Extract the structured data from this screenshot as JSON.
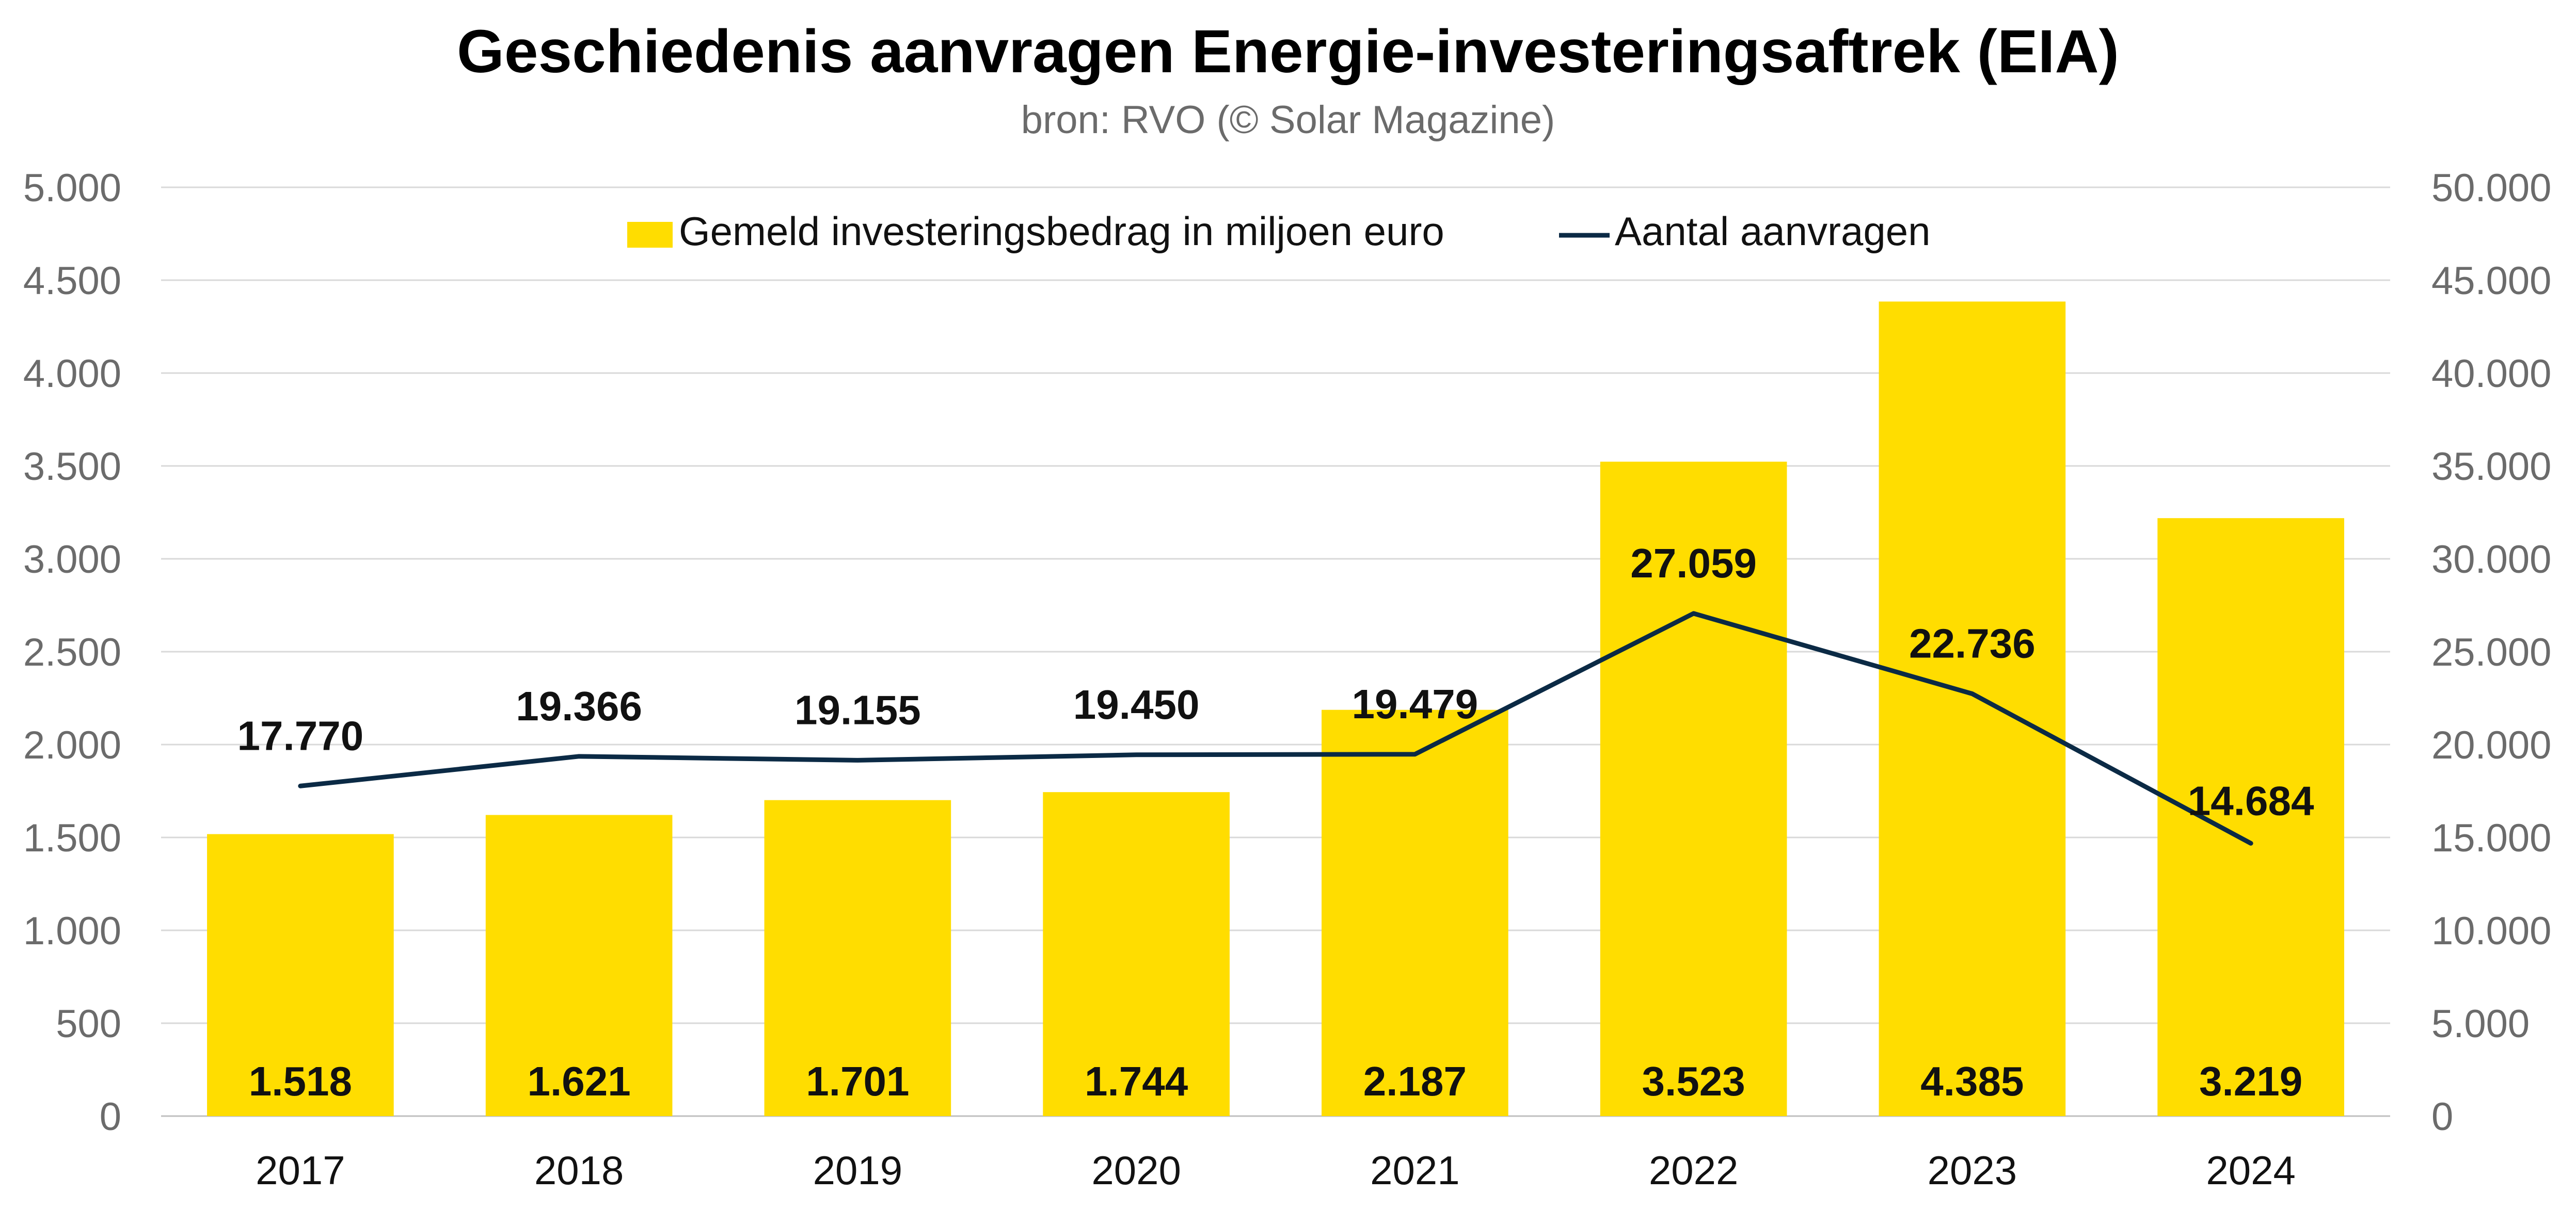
{
  "chart_data": {
    "type": "bar",
    "title": "Geschiedenis aanvragen Energie-investeringsaftrek (EIA)",
    "subtitle": "bron: RVO (© Solar Magazine)",
    "categories": [
      "2017",
      "2018",
      "2019",
      "2020",
      "2021",
      "2022",
      "2023",
      "2024"
    ],
    "series": [
      {
        "name": "Gemeld investeringsbedrag in miljoen euro",
        "type": "bar",
        "axis": "left",
        "color": "#FFDD00",
        "values": [
          1518,
          1621,
          1701,
          1744,
          2187,
          3523,
          4385,
          3219
        ],
        "labels": [
          "1.518",
          "1.621",
          "1.701",
          "1.744",
          "2.187",
          "3.523",
          "4.385",
          "3.219"
        ]
      },
      {
        "name": "Aantal aanvragen",
        "type": "line",
        "axis": "right",
        "color": "#0B2A45",
        "values": [
          17770,
          19366,
          19155,
          19450,
          19479,
          27059,
          22736,
          14684
        ],
        "labels": [
          "17.770",
          "19.366",
          "19.155",
          "19.450",
          "19.479",
          "27.059",
          "22.736",
          "14.684"
        ]
      }
    ],
    "y_left": {
      "lim": [
        0,
        5000
      ],
      "ticks": [
        0,
        500,
        1000,
        1500,
        2000,
        2500,
        3000,
        3500,
        4000,
        4500,
        5000
      ],
      "tick_labels": [
        "0",
        "500",
        "1.000",
        "1.500",
        "2.000",
        "2.500",
        "3.000",
        "3.500",
        "4.000",
        "4.500",
        "5.000"
      ]
    },
    "y_right": {
      "lim": [
        0,
        50000
      ],
      "ticks": [
        0,
        5000,
        10000,
        15000,
        20000,
        25000,
        30000,
        35000,
        40000,
        45000,
        50000
      ],
      "tick_labels": [
        "0",
        "5.000",
        "10.000",
        "15.000",
        "20.000",
        "25.000",
        "30.000",
        "35.000",
        "40.000",
        "45.000",
        "50.000"
      ]
    },
    "grid": true,
    "legend_position": "top-center",
    "colors": {
      "gridline": "#D9D9D9",
      "axis_text": "#6b6b6b"
    }
  }
}
